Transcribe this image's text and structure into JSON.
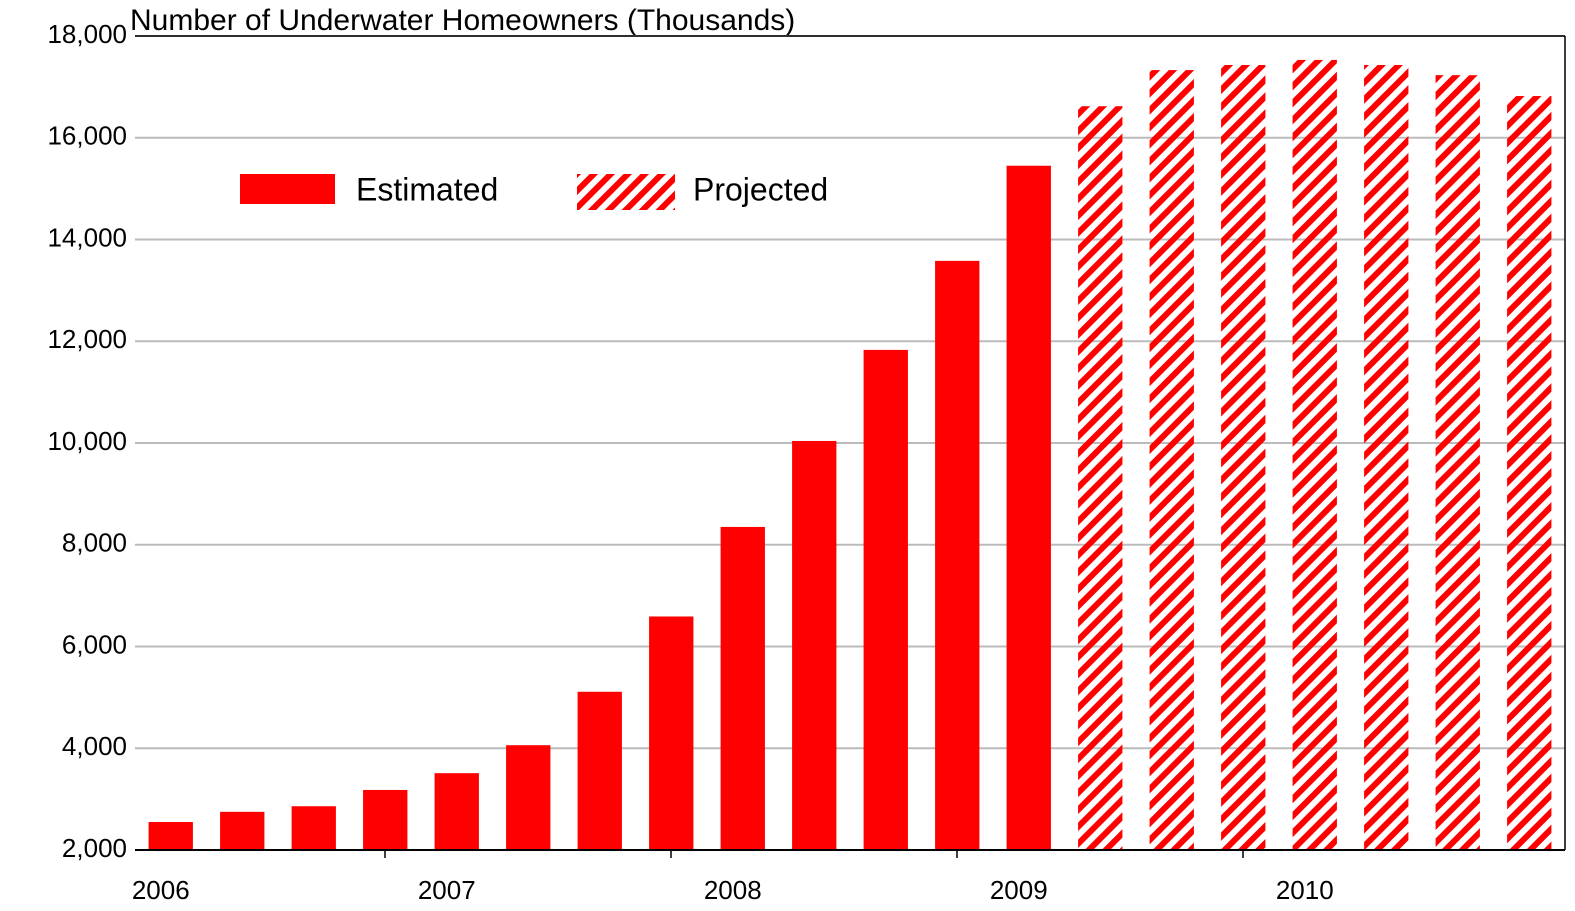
{
  "chart_data": {
    "type": "bar",
    "title": "Number of Underwater Homeowners (Thousands)",
    "categories": [
      "2006",
      null,
      null,
      null,
      "2007",
      null,
      null,
      null,
      "2008",
      null,
      null,
      null,
      "2009",
      null,
      null,
      null,
      "2010",
      null,
      null,
      null
    ],
    "series": [
      {
        "name": "Estimated",
        "color": "#ff0000",
        "pattern": "solid",
        "values": [
          2550,
          2750,
          2860,
          3180,
          3510,
          4060,
          5110,
          6590,
          8350,
          10040,
          11830,
          13580,
          15450,
          null,
          null,
          null,
          null,
          null,
          null,
          null
        ]
      },
      {
        "name": "Projected",
        "color": "#ff0000",
        "pattern": "hatch",
        "values": [
          null,
          null,
          null,
          null,
          null,
          null,
          null,
          null,
          null,
          null,
          null,
          null,
          null,
          16620,
          17330,
          17430,
          17530,
          17430,
          17230,
          16820
        ]
      }
    ],
    "ylim": [
      2000,
      18000
    ],
    "yticks": [
      {
        "value": 2000,
        "label": "2,000"
      },
      {
        "value": 4000,
        "label": "4,000"
      },
      {
        "value": 6000,
        "label": "6,000"
      },
      {
        "value": 8000,
        "label": "8,000"
      },
      {
        "value": 10000,
        "label": "10,000"
      },
      {
        "value": 12000,
        "label": "12,000"
      },
      {
        "value": 14000,
        "label": "14,000"
      },
      {
        "value": 16000,
        "label": "16,000"
      },
      {
        "value": 18000,
        "label": "18,000"
      }
    ],
    "grid": true
  }
}
